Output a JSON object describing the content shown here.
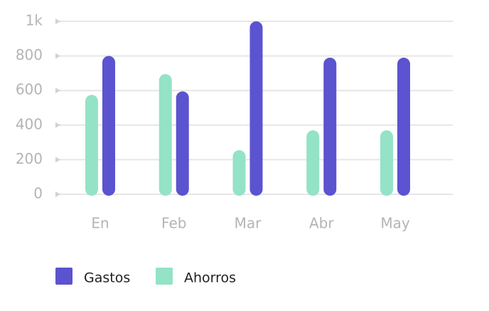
{
  "chart_data": {
    "type": "bar",
    "categories": [
      "En",
      "Feb",
      "Mar",
      "Abr",
      "May"
    ],
    "series": [
      {
        "name": "Ahorros",
        "color": "#94e3c6",
        "values": [
          575,
          695,
          255,
          370,
          370
        ]
      },
      {
        "name": "Gastos",
        "color": "#5b53cf",
        "values": [
          800,
          595,
          1000,
          790,
          790
        ]
      }
    ],
    "y_ticks": [
      {
        "value": 0,
        "label": "0"
      },
      {
        "value": 200,
        "label": "200"
      },
      {
        "value": 400,
        "label": "400"
      },
      {
        "value": 600,
        "label": "600"
      },
      {
        "value": 800,
        "label": "800"
      },
      {
        "value": 1000,
        "label": "1k"
      }
    ],
    "ylim": [
      0,
      1000
    ],
    "grid": true,
    "gridline_color": "#e6e6e6",
    "tick_color": "#b4b4b4",
    "legend": {
      "position": "bottom-left",
      "order": [
        "Gastos",
        "Ahorros"
      ]
    }
  }
}
